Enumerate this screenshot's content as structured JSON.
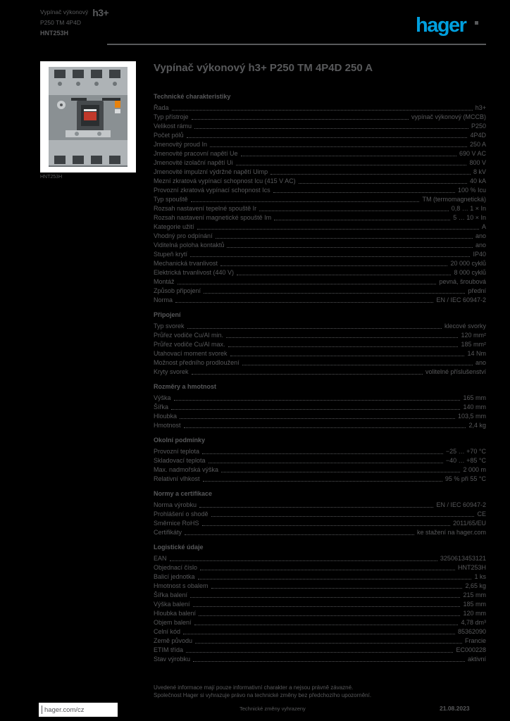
{
  "page": {
    "background": "#000000",
    "text_color": "#58595B",
    "accent_color": "#00A0DF",
    "paper_color": "#FFFFFF"
  },
  "header": {
    "doc_type": "Vypínač výkonový",
    "range_badge": "h3+",
    "subtitle": "P250 TM 4P4D",
    "reference": "HNT253H",
    "logo_text": "hager"
  },
  "photo": {
    "caption": "HNT253H"
  },
  "main": {
    "title": "Vypínač výkonový h3+ P250 TM 4P4D 250 A",
    "note_line1": "Uvedené informace mají pouze informativní charakter a nejsou právně závazné.",
    "note_line2": "Společnost Hager si vyhrazuje právo na technické změny bez předchozího upozornění."
  },
  "sections": [
    {
      "heading": "Technické charakteristiky",
      "rows": [
        {
          "label": "Řada",
          "value": "h3+"
        },
        {
          "label": "Typ přístroje",
          "value": "vypínač výkonový (MCCB)"
        },
        {
          "label": "Velikost rámu",
          "value": "P250"
        },
        {
          "label": "Počet pólů",
          "value": "4P4D"
        },
        {
          "label": "Jmenovitý proud In",
          "value": "250 A"
        },
        {
          "label": "Jmenovité pracovní napětí Ue",
          "value": "690 V AC"
        },
        {
          "label": "Jmenovité izolační napětí Ui",
          "value": "800 V"
        },
        {
          "label": "Jmenovité impulzní výdržné napětí Uimp",
          "value": "8 kV"
        },
        {
          "label": "Mezní zkratová vypínací schopnost Icu (415 V AC)",
          "value": "40 kA"
        },
        {
          "label": "Provozní zkratová vypínací schopnost Ics",
          "value": "100 % Icu"
        },
        {
          "label": "Typ spouště",
          "value": "TM (termomagnetická)"
        },
        {
          "label": "Rozsah nastavení tepelné spouště Ir",
          "value": "0,8 … 1 × In"
        },
        {
          "label": "Rozsah nastavení magnetické spouště Im",
          "value": "5 … 10 × In"
        },
        {
          "label": "Kategorie užití",
          "value": "A"
        },
        {
          "label": "Vhodný pro odpínání",
          "value": "ano"
        },
        {
          "label": "Viditelná poloha kontaktů",
          "value": "ano"
        },
        {
          "label": "Stupeň krytí",
          "value": "IP40"
        },
        {
          "label": "Mechanická trvanlivost",
          "value": "20 000 cyklů"
        },
        {
          "label": "Elektrická trvanlivost (440 V)",
          "value": "8 000 cyklů"
        },
        {
          "label": "Montáž",
          "value": "pevná, šroubová"
        },
        {
          "label": "Způsob připojení",
          "value": "přední"
        },
        {
          "label": "Norma",
          "value": "EN / IEC 60947-2"
        }
      ]
    },
    {
      "heading": "Připojení",
      "rows": [
        {
          "label": "Typ svorek",
          "value": "klecové svorky"
        },
        {
          "label": "Průřez vodiče Cu/Al min.",
          "value": "120 mm²"
        },
        {
          "label": "Průřez vodiče Cu/Al max.",
          "value": "185 mm²"
        },
        {
          "label": "Utahovací moment svorek",
          "value": "14 Nm"
        },
        {
          "label": "Možnost předního prodloužení",
          "value": "ano"
        },
        {
          "label": "Kryty svorek",
          "value": "volitelné příslušenství"
        }
      ]
    },
    {
      "heading": "Rozměry a hmotnost",
      "rows": [
        {
          "label": "Výška",
          "value": "165 mm"
        },
        {
          "label": "Šířka",
          "value": "140 mm"
        },
        {
          "label": "Hloubka",
          "value": "103,5 mm"
        },
        {
          "label": "Hmotnost",
          "value": "2,4 kg"
        }
      ]
    },
    {
      "heading": "Okolní podmínky",
      "rows": [
        {
          "label": "Provozní teplota",
          "value": "−25 … +70 °C"
        },
        {
          "label": "Skladovací teplota",
          "value": "−40 … +85 °C"
        },
        {
          "label": "Max. nadmořská výška",
          "value": "2 000 m"
        },
        {
          "label": "Relativní vlhkost",
          "value": "95 % při 55 °C"
        }
      ]
    },
    {
      "heading": "Normy a certifikace",
      "rows": [
        {
          "label": "Norma výrobku",
          "value": "EN / IEC 60947-2"
        },
        {
          "label": "Prohlášení o shodě",
          "value": "CE"
        },
        {
          "label": "Směrnice RoHS",
          "value": "2011/65/EU"
        },
        {
          "label": "Certifikáty",
          "value": "ke stažení na hager.com"
        }
      ]
    },
    {
      "heading": "Logistické údaje",
      "rows": [
        {
          "label": "EAN",
          "value": "3250613453121"
        },
        {
          "label": "Objednací číslo",
          "value": "HNT253H"
        },
        {
          "label": "Balicí jednotka",
          "value": "1 ks"
        },
        {
          "label": "Hmotnost s obalem",
          "value": "2,65 kg"
        },
        {
          "label": "Šířka balení",
          "value": "215 mm"
        },
        {
          "label": "Výška balení",
          "value": "185 mm"
        },
        {
          "label": "Hloubka balení",
          "value": "120 mm"
        },
        {
          "label": "Objem balení",
          "value": "4,78 dm³"
        },
        {
          "label": "Celní kód",
          "value": "85362090"
        },
        {
          "label": "Země původu",
          "value": "Francie"
        },
        {
          "label": "ETIM třída",
          "value": "EC000228"
        },
        {
          "label": "Stav výrobku",
          "value": "aktivní"
        }
      ]
    }
  ],
  "footer": {
    "website": "hager.com/cz",
    "center_note": "Technické změny vyhrazeny",
    "date": "21.08.2023"
  }
}
